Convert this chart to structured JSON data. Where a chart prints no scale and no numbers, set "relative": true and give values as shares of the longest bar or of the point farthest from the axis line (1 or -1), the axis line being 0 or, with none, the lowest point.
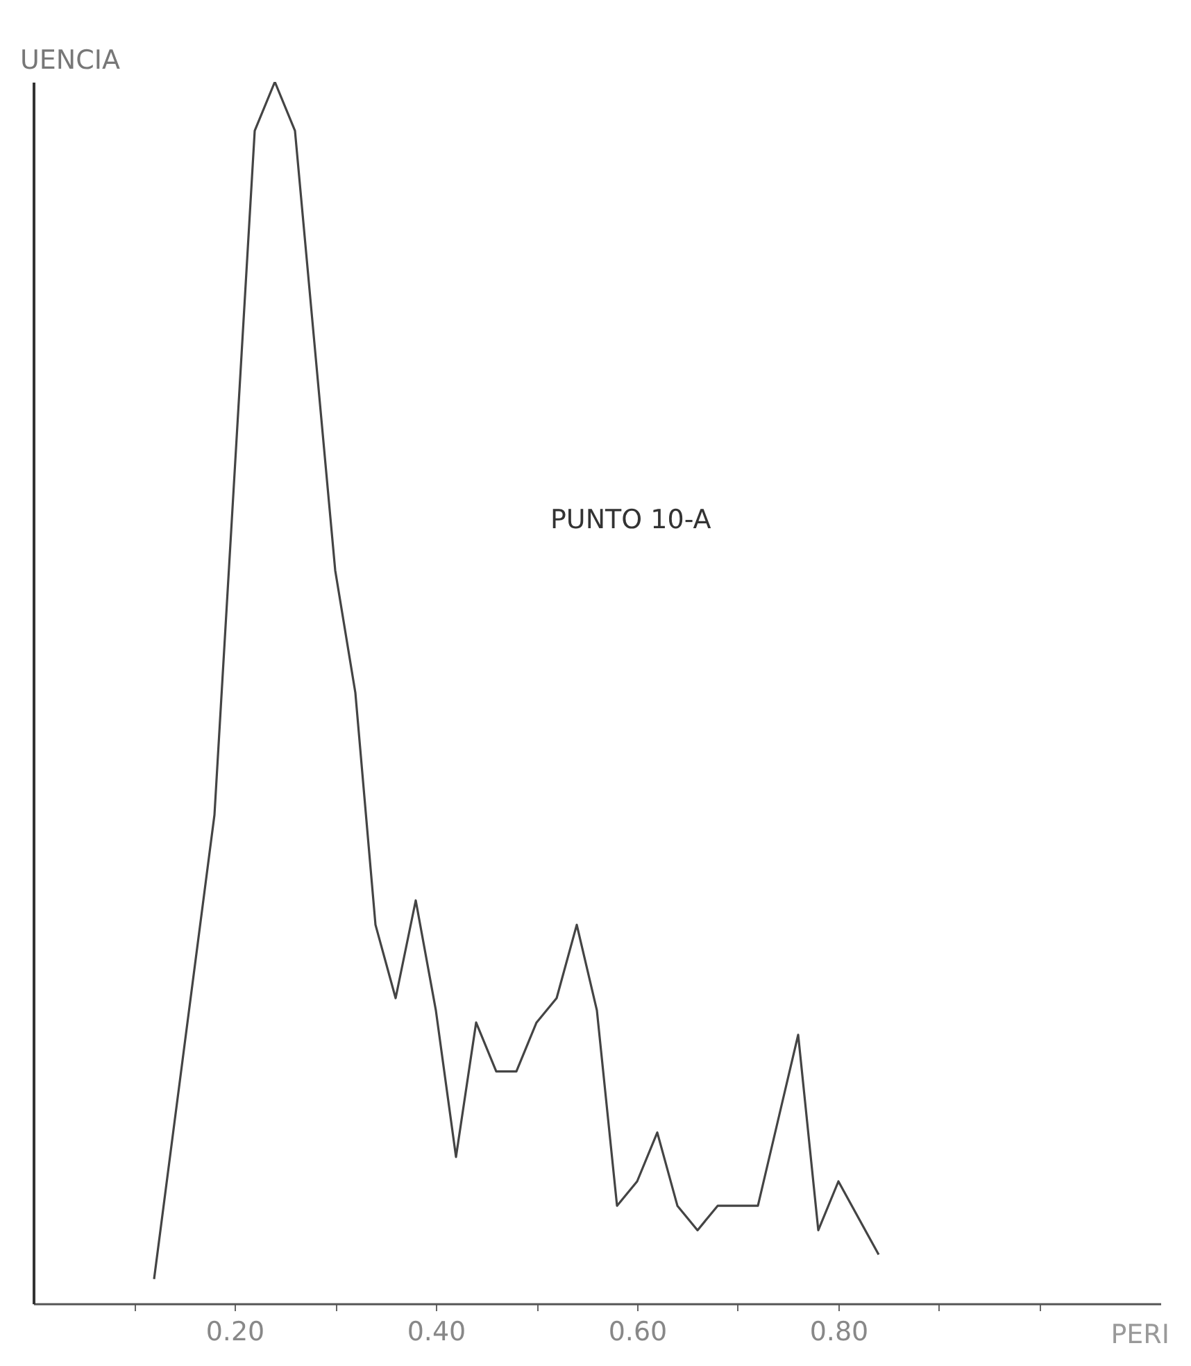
{
  "chart_data": {
    "type": "line",
    "relative": true,
    "xlabel": "PERI",
    "ylabel": "UENCIA",
    "annotations": [
      "PUNTO 10-A"
    ],
    "x": [
      0.12,
      0.18,
      0.22,
      0.24,
      0.26,
      0.3,
      0.32,
      0.34,
      0.36,
      0.38,
      0.4,
      0.42,
      0.44,
      0.46,
      0.48,
      0.5,
      0.52,
      0.54,
      0.56,
      0.58,
      0.6,
      0.62,
      0.64,
      0.66,
      0.68,
      0.72,
      0.74,
      0.76,
      0.78,
      0.8,
      0.84
    ],
    "series": [
      {
        "color": "#444444",
        "values": [
          0.02,
          0.4,
          0.96,
          1,
          0.96,
          0.6,
          0.5,
          0.31,
          0.25,
          0.33,
          0.24,
          0.12,
          0.23,
          0.19,
          0.19,
          0.23,
          0.25,
          0.31,
          0.24,
          0.08,
          0.1,
          0.14,
          0.08,
          0.06,
          0.08,
          0.08,
          0.15,
          0.22,
          0.06,
          0.1,
          0.04
        ]
      }
    ],
    "xlim": [
      0,
      1.12
    ],
    "xticks": [
      {
        "value": 0.1,
        "label": null
      },
      {
        "value": 0.2,
        "label": "0.20"
      },
      {
        "value": 0.3,
        "label": null
      },
      {
        "value": 0.4,
        "label": "0.40"
      },
      {
        "value": 0.5,
        "label": null
      },
      {
        "value": 0.6,
        "label": "0.60"
      },
      {
        "value": 0.7,
        "label": null
      },
      {
        "value": 0.8,
        "label": "0.80"
      },
      {
        "value": 0.9,
        "label": null
      },
      {
        "value": 1.0,
        "label": null
      }
    ],
    "grid": false,
    "marker": "none",
    "line_style": "solid"
  }
}
